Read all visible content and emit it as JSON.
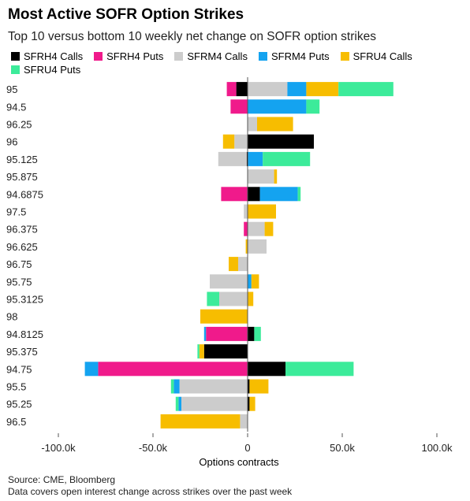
{
  "title": "Most Active SOFR Option Strikes",
  "subtitle": "Top 10 versus bottom 10 weekly net change on SOFR option strikes",
  "source": "Source: CME, Bloomberg",
  "note": "Data covers open interest change across strikes over the past week",
  "chart_data": {
    "type": "bar",
    "orientation": "horizontal",
    "stacked": true,
    "xlabel": "Options contracts",
    "xlim": [
      -100000,
      100000
    ],
    "xticks": [
      -100000,
      -50000,
      0,
      50000,
      100000
    ],
    "xtick_labels": [
      "-100.0k",
      "-50.0k",
      "0",
      "50.0k",
      "100.0k"
    ],
    "legend_position": "top",
    "categories": [
      "95",
      "94.5",
      "96.25",
      "96",
      "95.125",
      "95.875",
      "94.6875",
      "97.5",
      "96.375",
      "96.625",
      "96.75",
      "95.75",
      "95.3125",
      "98",
      "94.8125",
      "95.375",
      "94.75",
      "95.5",
      "95.25",
      "96.5"
    ],
    "series": [
      {
        "name": "SFRH4 Calls",
        "color": "#000000",
        "values": [
          -6000,
          0,
          0,
          35000,
          -500,
          0,
          6500,
          0,
          0,
          0,
          0,
          0,
          0,
          0,
          3500,
          -23000,
          20000,
          1000,
          1000,
          0
        ]
      },
      {
        "name": "SFRH4 Puts",
        "color": "#f01a8b",
        "values": [
          -5000,
          -9000,
          0,
          0,
          0,
          0,
          -14000,
          0,
          -2000,
          0,
          0,
          0,
          0,
          0,
          -22000,
          0,
          -79000,
          0,
          0,
          0
        ]
      },
      {
        "name": "SFRM4 Calls",
        "color": "#cccccc",
        "values": [
          21000,
          0,
          5000,
          -7000,
          -15000,
          14000,
          0,
          -2000,
          9000,
          10000,
          -5000,
          -20000,
          -15000,
          0,
          0,
          0,
          0,
          -36000,
          -35000,
          -4000
        ]
      },
      {
        "name": "SFRM4 Puts",
        "color": "#14a3f0",
        "values": [
          10000,
          31000,
          0,
          0,
          8000,
          0,
          20000,
          0,
          0,
          0,
          0,
          2000,
          0,
          0,
          -1000,
          0,
          -7000,
          -3000,
          -1500,
          0
        ]
      },
      {
        "name": "SFRU4 Calls",
        "color": "#f7bd00",
        "values": [
          17000,
          0,
          19000,
          -6000,
          0,
          1500,
          0,
          15000,
          4500,
          -1000,
          -5000,
          4000,
          3000,
          -25000,
          0,
          -2500,
          0,
          10000,
          3000,
          -42000
        ]
      },
      {
        "name": "SFRU4 Puts",
        "color": "#3ceb9a",
        "values": [
          29000,
          7000,
          0,
          0,
          25000,
          0,
          1500,
          0,
          0,
          0,
          0,
          0,
          -6500,
          0,
          3500,
          -1000,
          36000,
          -1500,
          -1500,
          0
        ]
      }
    ]
  }
}
